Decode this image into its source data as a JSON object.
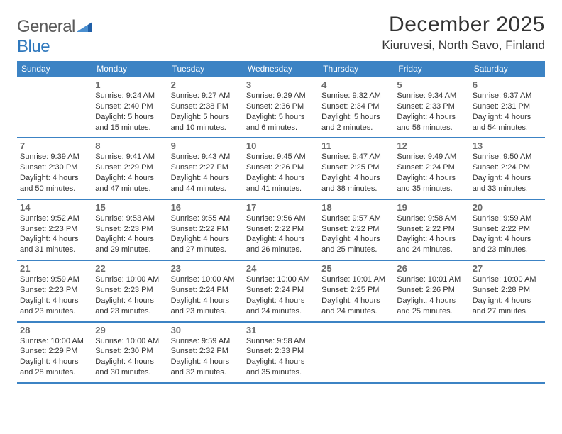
{
  "logo": {
    "word1": "General",
    "word2": "Blue"
  },
  "title": "December 2025",
  "location": "Kiuruvesi, North Savo, Finland",
  "colors": {
    "header_bg": "#3c83c4",
    "header_text": "#ffffff",
    "divider": "#3c83c4",
    "daynum": "#6a6a6a",
    "body_text": "#333333",
    "logo_gray": "#5a5a5a",
    "logo_blue": "#2f78bd",
    "logo_shape": "#1f5fa8"
  },
  "weekdays": [
    "Sunday",
    "Monday",
    "Tuesday",
    "Wednesday",
    "Thursday",
    "Friday",
    "Saturday"
  ],
  "weeks": [
    [
      null,
      {
        "n": "1",
        "sr": "Sunrise: 9:24 AM",
        "ss": "Sunset: 2:40 PM",
        "d1": "Daylight: 5 hours",
        "d2": "and 15 minutes."
      },
      {
        "n": "2",
        "sr": "Sunrise: 9:27 AM",
        "ss": "Sunset: 2:38 PM",
        "d1": "Daylight: 5 hours",
        "d2": "and 10 minutes."
      },
      {
        "n": "3",
        "sr": "Sunrise: 9:29 AM",
        "ss": "Sunset: 2:36 PM",
        "d1": "Daylight: 5 hours",
        "d2": "and 6 minutes."
      },
      {
        "n": "4",
        "sr": "Sunrise: 9:32 AM",
        "ss": "Sunset: 2:34 PM",
        "d1": "Daylight: 5 hours",
        "d2": "and 2 minutes."
      },
      {
        "n": "5",
        "sr": "Sunrise: 9:34 AM",
        "ss": "Sunset: 2:33 PM",
        "d1": "Daylight: 4 hours",
        "d2": "and 58 minutes."
      },
      {
        "n": "6",
        "sr": "Sunrise: 9:37 AM",
        "ss": "Sunset: 2:31 PM",
        "d1": "Daylight: 4 hours",
        "d2": "and 54 minutes."
      }
    ],
    [
      {
        "n": "7",
        "sr": "Sunrise: 9:39 AM",
        "ss": "Sunset: 2:30 PM",
        "d1": "Daylight: 4 hours",
        "d2": "and 50 minutes."
      },
      {
        "n": "8",
        "sr": "Sunrise: 9:41 AM",
        "ss": "Sunset: 2:29 PM",
        "d1": "Daylight: 4 hours",
        "d2": "and 47 minutes."
      },
      {
        "n": "9",
        "sr": "Sunrise: 9:43 AM",
        "ss": "Sunset: 2:27 PM",
        "d1": "Daylight: 4 hours",
        "d2": "and 44 minutes."
      },
      {
        "n": "10",
        "sr": "Sunrise: 9:45 AM",
        "ss": "Sunset: 2:26 PM",
        "d1": "Daylight: 4 hours",
        "d2": "and 41 minutes."
      },
      {
        "n": "11",
        "sr": "Sunrise: 9:47 AM",
        "ss": "Sunset: 2:25 PM",
        "d1": "Daylight: 4 hours",
        "d2": "and 38 minutes."
      },
      {
        "n": "12",
        "sr": "Sunrise: 9:49 AM",
        "ss": "Sunset: 2:24 PM",
        "d1": "Daylight: 4 hours",
        "d2": "and 35 minutes."
      },
      {
        "n": "13",
        "sr": "Sunrise: 9:50 AM",
        "ss": "Sunset: 2:24 PM",
        "d1": "Daylight: 4 hours",
        "d2": "and 33 minutes."
      }
    ],
    [
      {
        "n": "14",
        "sr": "Sunrise: 9:52 AM",
        "ss": "Sunset: 2:23 PM",
        "d1": "Daylight: 4 hours",
        "d2": "and 31 minutes."
      },
      {
        "n": "15",
        "sr": "Sunrise: 9:53 AM",
        "ss": "Sunset: 2:23 PM",
        "d1": "Daylight: 4 hours",
        "d2": "and 29 minutes."
      },
      {
        "n": "16",
        "sr": "Sunrise: 9:55 AM",
        "ss": "Sunset: 2:22 PM",
        "d1": "Daylight: 4 hours",
        "d2": "and 27 minutes."
      },
      {
        "n": "17",
        "sr": "Sunrise: 9:56 AM",
        "ss": "Sunset: 2:22 PM",
        "d1": "Daylight: 4 hours",
        "d2": "and 26 minutes."
      },
      {
        "n": "18",
        "sr": "Sunrise: 9:57 AM",
        "ss": "Sunset: 2:22 PM",
        "d1": "Daylight: 4 hours",
        "d2": "and 25 minutes."
      },
      {
        "n": "19",
        "sr": "Sunrise: 9:58 AM",
        "ss": "Sunset: 2:22 PM",
        "d1": "Daylight: 4 hours",
        "d2": "and 24 minutes."
      },
      {
        "n": "20",
        "sr": "Sunrise: 9:59 AM",
        "ss": "Sunset: 2:22 PM",
        "d1": "Daylight: 4 hours",
        "d2": "and 23 minutes."
      }
    ],
    [
      {
        "n": "21",
        "sr": "Sunrise: 9:59 AM",
        "ss": "Sunset: 2:23 PM",
        "d1": "Daylight: 4 hours",
        "d2": "and 23 minutes."
      },
      {
        "n": "22",
        "sr": "Sunrise: 10:00 AM",
        "ss": "Sunset: 2:23 PM",
        "d1": "Daylight: 4 hours",
        "d2": "and 23 minutes."
      },
      {
        "n": "23",
        "sr": "Sunrise: 10:00 AM",
        "ss": "Sunset: 2:24 PM",
        "d1": "Daylight: 4 hours",
        "d2": "and 23 minutes."
      },
      {
        "n": "24",
        "sr": "Sunrise: 10:00 AM",
        "ss": "Sunset: 2:24 PM",
        "d1": "Daylight: 4 hours",
        "d2": "and 24 minutes."
      },
      {
        "n": "25",
        "sr": "Sunrise: 10:01 AM",
        "ss": "Sunset: 2:25 PM",
        "d1": "Daylight: 4 hours",
        "d2": "and 24 minutes."
      },
      {
        "n": "26",
        "sr": "Sunrise: 10:01 AM",
        "ss": "Sunset: 2:26 PM",
        "d1": "Daylight: 4 hours",
        "d2": "and 25 minutes."
      },
      {
        "n": "27",
        "sr": "Sunrise: 10:00 AM",
        "ss": "Sunset: 2:28 PM",
        "d1": "Daylight: 4 hours",
        "d2": "and 27 minutes."
      }
    ],
    [
      {
        "n": "28",
        "sr": "Sunrise: 10:00 AM",
        "ss": "Sunset: 2:29 PM",
        "d1": "Daylight: 4 hours",
        "d2": "and 28 minutes."
      },
      {
        "n": "29",
        "sr": "Sunrise: 10:00 AM",
        "ss": "Sunset: 2:30 PM",
        "d1": "Daylight: 4 hours",
        "d2": "and 30 minutes."
      },
      {
        "n": "30",
        "sr": "Sunrise: 9:59 AM",
        "ss": "Sunset: 2:32 PM",
        "d1": "Daylight: 4 hours",
        "d2": "and 32 minutes."
      },
      {
        "n": "31",
        "sr": "Sunrise: 9:58 AM",
        "ss": "Sunset: 2:33 PM",
        "d1": "Daylight: 4 hours",
        "d2": "and 35 minutes."
      },
      null,
      null,
      null
    ]
  ]
}
